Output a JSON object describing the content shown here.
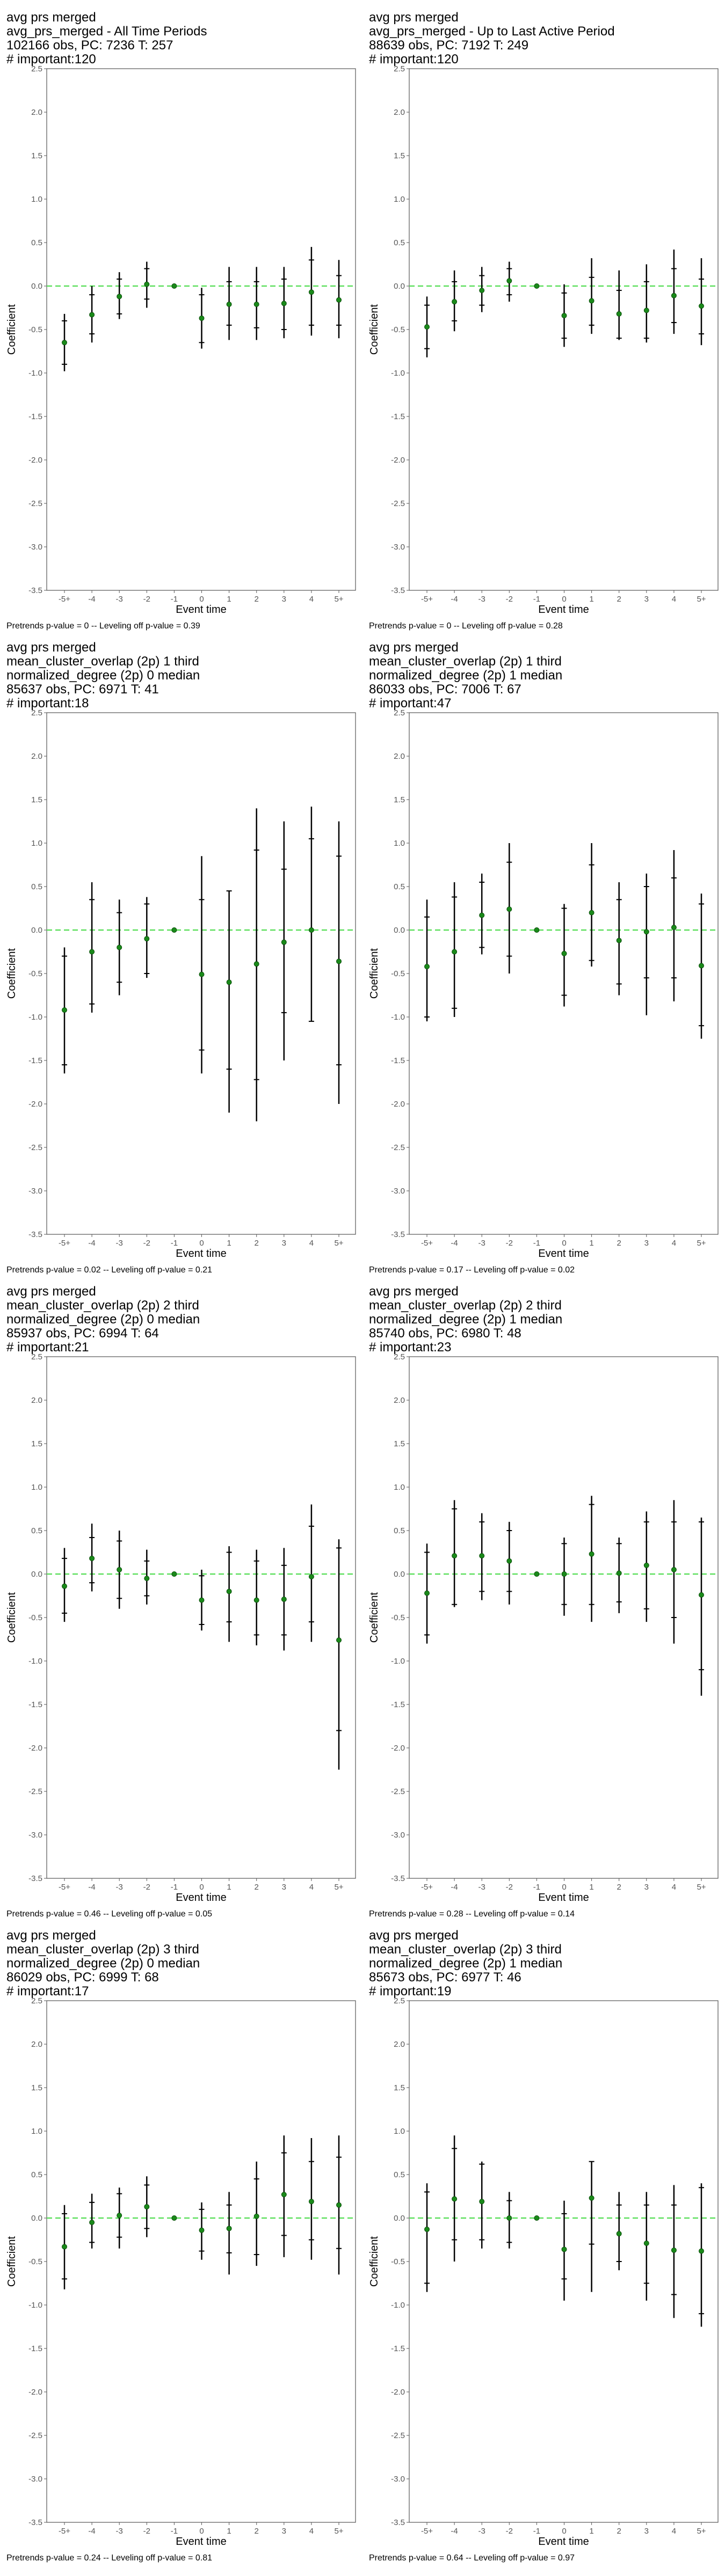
{
  "axis": {
    "ylabel": "Coefficient",
    "xlabel": "Event time",
    "categories": [
      "-5+",
      "-4",
      "-3",
      "-2",
      "-1",
      "0",
      "1",
      "2",
      "3",
      "4",
      "5+"
    ],
    "yticks": [
      "2.5",
      "2.0",
      "1.5",
      "1.0",
      "0.5",
      "0.0",
      "-0.5",
      "-1.0",
      "-1.5",
      "-2.0",
      "-2.5",
      "-3.0",
      "-3.5"
    ],
    "ylim": [
      -3.5,
      2.5
    ]
  },
  "colors": {
    "point": "#1a8a1a",
    "zero_line": "#5fe05f",
    "bar": "#000000"
  },
  "chart_data": [
    {
      "type": "scatter",
      "title": [
        "avg prs merged",
        "avg_prs_merged - All Time Periods",
        "102166 obs, PC: 7236 T: 257",
        "# important:120"
      ],
      "note": "Pretrends p-value = 0 -- Leveling off p-value = 0.39",
      "x": [
        "-5+",
        "-4",
        "-3",
        "-2",
        "-1",
        "0",
        "1",
        "2",
        "3",
        "4",
        "5+"
      ],
      "y": [
        -0.65,
        -0.33,
        -0.12,
        0.02,
        0.0,
        -0.37,
        -0.21,
        -0.21,
        -0.2,
        -0.07,
        -0.16
      ],
      "ci_inner": [
        [
          -0.9,
          -0.4
        ],
        [
          -0.55,
          -0.1
        ],
        [
          -0.32,
          0.08
        ],
        [
          -0.15,
          0.2
        ],
        [
          0,
          0
        ],
        [
          -0.65,
          -0.1
        ],
        [
          -0.45,
          0.05
        ],
        [
          -0.48,
          0.05
        ],
        [
          -0.5,
          0.08
        ],
        [
          -0.45,
          0.3
        ],
        [
          -0.45,
          0.12
        ]
      ],
      "ci_outer": [
        [
          -0.98,
          -0.32
        ],
        [
          -0.65,
          0.0
        ],
        [
          -0.38,
          0.16
        ],
        [
          -0.25,
          0.28
        ],
        [
          0,
          0
        ],
        [
          -0.72,
          -0.02
        ],
        [
          -0.62,
          0.22
        ],
        [
          -0.62,
          0.22
        ],
        [
          -0.6,
          0.22
        ],
        [
          -0.57,
          0.45
        ],
        [
          -0.6,
          0.3
        ]
      ]
    },
    {
      "type": "scatter",
      "title": [
        "avg prs merged",
        "avg_prs_merged - Up to Last Active Period",
        "88639 obs, PC: 7192 T: 249",
        "# important:120"
      ],
      "note": "Pretrends p-value = 0 -- Leveling off p-value = 0.28",
      "x": [
        "-5+",
        "-4",
        "-3",
        "-2",
        "-1",
        "0",
        "1",
        "2",
        "3",
        "4",
        "5+"
      ],
      "y": [
        -0.47,
        -0.18,
        -0.05,
        0.06,
        0.0,
        -0.34,
        -0.17,
        -0.32,
        -0.28,
        -0.11,
        -0.23
      ],
      "ci_inner": [
        [
          -0.72,
          -0.22
        ],
        [
          -0.4,
          0.05
        ],
        [
          -0.22,
          0.12
        ],
        [
          -0.1,
          0.2
        ],
        [
          0,
          0
        ],
        [
          -0.6,
          -0.08
        ],
        [
          -0.45,
          0.1
        ],
        [
          -0.6,
          -0.05
        ],
        [
          -0.6,
          0.05
        ],
        [
          -0.42,
          0.2
        ],
        [
          -0.55,
          0.08
        ]
      ],
      "ci_outer": [
        [
          -0.82,
          -0.12
        ],
        [
          -0.52,
          0.18
        ],
        [
          -0.3,
          0.22
        ],
        [
          -0.18,
          0.28
        ],
        [
          0,
          0
        ],
        [
          -0.7,
          0.02
        ],
        [
          -0.55,
          0.32
        ],
        [
          -0.62,
          0.18
        ],
        [
          -0.65,
          0.25
        ],
        [
          -0.55,
          0.42
        ],
        [
          -0.68,
          0.32
        ]
      ]
    },
    {
      "type": "scatter",
      "title": [
        "avg prs merged",
        "mean_cluster_overlap (2p) 1 third",
        "normalized_degree (2p) 0 median",
        "85637 obs, PC: 6971 T: 41",
        "# important:18"
      ],
      "note": "Pretrends p-value = 0.02 -- Leveling off p-value = 0.21",
      "x": [
        "-5+",
        "-4",
        "-3",
        "-2",
        "-1",
        "0",
        "1",
        "2",
        "3",
        "4",
        "5+"
      ],
      "y": [
        -0.92,
        -0.25,
        -0.2,
        -0.1,
        0.0,
        -0.51,
        -0.6,
        -0.39,
        -0.14,
        0.0,
        -0.36
      ],
      "ci_inner": [
        [
          -1.55,
          -0.3
        ],
        [
          -0.85,
          0.35
        ],
        [
          -0.6,
          0.2
        ],
        [
          -0.5,
          0.3
        ],
        [
          0,
          0
        ],
        [
          -1.38,
          0.35
        ],
        [
          -1.6,
          0.45
        ],
        [
          -1.72,
          0.92
        ],
        [
          -0.95,
          0.7
        ],
        [
          -1.05,
          1.05
        ],
        [
          -1.55,
          0.85
        ]
      ],
      "ci_outer": [
        [
          -1.65,
          -0.2
        ],
        [
          -0.95,
          0.55
        ],
        [
          -0.75,
          0.35
        ],
        [
          -0.55,
          0.38
        ],
        [
          0,
          0
        ],
        [
          -1.65,
          0.85
        ],
        [
          -2.1,
          0.45
        ],
        [
          -2.2,
          1.4
        ],
        [
          -1.5,
          1.25
        ],
        [
          -1.05,
          1.42
        ],
        [
          -2.0,
          1.25
        ]
      ]
    },
    {
      "type": "scatter",
      "title": [
        "avg prs merged",
        "mean_cluster_overlap (2p) 1 third",
        "normalized_degree (2p) 1 median",
        "86033 obs, PC: 7006 T: 67",
        "# important:47"
      ],
      "note": "Pretrends p-value = 0.17 -- Leveling off p-value = 0.02",
      "x": [
        "-5+",
        "-4",
        "-3",
        "-2",
        "-1",
        "0",
        "1",
        "2",
        "3",
        "4",
        "5+"
      ],
      "y": [
        -0.42,
        -0.25,
        0.17,
        0.24,
        0.0,
        -0.27,
        0.2,
        -0.12,
        -0.02,
        0.03,
        -0.41
      ],
      "ci_inner": [
        [
          -1.0,
          0.15
        ],
        [
          -0.9,
          0.38
        ],
        [
          -0.2,
          0.55
        ],
        [
          -0.3,
          0.78
        ],
        [
          0,
          0
        ],
        [
          -0.75,
          0.25
        ],
        [
          -0.35,
          0.75
        ],
        [
          -0.62,
          0.35
        ],
        [
          -0.55,
          0.5
        ],
        [
          -0.55,
          0.6
        ],
        [
          -1.1,
          0.3
        ]
      ],
      "ci_outer": [
        [
          -1.05,
          0.35
        ],
        [
          -1.0,
          0.55
        ],
        [
          -0.28,
          0.65
        ],
        [
          -0.5,
          1.0
        ],
        [
          0,
          0
        ],
        [
          -0.88,
          0.3
        ],
        [
          -0.42,
          1.0
        ],
        [
          -0.75,
          0.55
        ],
        [
          -0.98,
          0.65
        ],
        [
          -0.82,
          0.92
        ],
        [
          -1.25,
          0.42
        ]
      ]
    },
    {
      "type": "scatter",
      "title": [
        "avg prs merged",
        "mean_cluster_overlap (2p) 2 third",
        "normalized_degree (2p) 0 median",
        "85937 obs, PC: 6994 T: 64",
        "# important:21"
      ],
      "note": "Pretrends p-value = 0.46 -- Leveling off p-value = 0.05",
      "x": [
        "-5+",
        "-4",
        "-3",
        "-2",
        "-1",
        "0",
        "1",
        "2",
        "3",
        "4",
        "5+"
      ],
      "y": [
        -0.14,
        0.18,
        0.05,
        -0.05,
        0.0,
        -0.3,
        -0.2,
        -0.3,
        -0.29,
        -0.03,
        -0.76
      ],
      "ci_inner": [
        [
          -0.45,
          0.18
        ],
        [
          -0.1,
          0.42
        ],
        [
          -0.28,
          0.38
        ],
        [
          -0.25,
          0.15
        ],
        [
          0,
          0
        ],
        [
          -0.58,
          -0.02
        ],
        [
          -0.55,
          0.25
        ],
        [
          -0.7,
          0.15
        ],
        [
          -0.7,
          0.1
        ],
        [
          -0.55,
          0.55
        ],
        [
          -1.8,
          0.3
        ]
      ],
      "ci_outer": [
        [
          -0.55,
          0.3
        ],
        [
          -0.2,
          0.58
        ],
        [
          -0.4,
          0.5
        ],
        [
          -0.35,
          0.28
        ],
        [
          0,
          0
        ],
        [
          -0.65,
          0.05
        ],
        [
          -0.78,
          0.32
        ],
        [
          -0.82,
          0.28
        ],
        [
          -0.88,
          0.3
        ],
        [
          -0.78,
          0.8
        ],
        [
          -2.25,
          0.4
        ]
      ]
    },
    {
      "type": "scatter",
      "title": [
        "avg prs merged",
        "mean_cluster_overlap (2p) 2 third",
        "normalized_degree (2p) 1 median",
        "85740 obs, PC: 6980 T: 48",
        "# important:23"
      ],
      "note": "Pretrends p-value = 0.28 -- Leveling off p-value = 0.14",
      "x": [
        "-5+",
        "-4",
        "-3",
        "-2",
        "-1",
        "0",
        "1",
        "2",
        "3",
        "4",
        "5+"
      ],
      "y": [
        -0.22,
        0.21,
        0.21,
        0.15,
        0.0,
        0.0,
        0.23,
        0.01,
        0.1,
        0.05,
        -0.24
      ],
      "ci_inner": [
        [
          -0.7,
          0.25
        ],
        [
          -0.35,
          0.75
        ],
        [
          -0.2,
          0.6
        ],
        [
          -0.2,
          0.5
        ],
        [
          0,
          0
        ],
        [
          -0.35,
          0.35
        ],
        [
          -0.35,
          0.8
        ],
        [
          -0.32,
          0.35
        ],
        [
          -0.4,
          0.6
        ],
        [
          -0.5,
          0.6
        ],
        [
          -1.1,
          0.6
        ]
      ],
      "ci_outer": [
        [
          -0.8,
          0.35
        ],
        [
          -0.38,
          0.85
        ],
        [
          -0.3,
          0.7
        ],
        [
          -0.35,
          0.6
        ],
        [
          0,
          0
        ],
        [
          -0.48,
          0.42
        ],
        [
          -0.55,
          0.9
        ],
        [
          -0.45,
          0.42
        ],
        [
          -0.55,
          0.72
        ],
        [
          -0.8,
          0.85
        ],
        [
          -1.4,
          0.65
        ]
      ]
    },
    {
      "type": "scatter",
      "title": [
        "avg prs merged",
        "mean_cluster_overlap (2p) 3 third",
        "normalized_degree (2p) 0 median",
        "86029 obs, PC: 6999 T: 68",
        "# important:17"
      ],
      "note": "Pretrends p-value = 0.24 -- Leveling off p-value = 0.81",
      "x": [
        "-5+",
        "-4",
        "-3",
        "-2",
        "-1",
        "0",
        "1",
        "2",
        "3",
        "4",
        "5+"
      ],
      "y": [
        -0.33,
        -0.05,
        0.03,
        0.13,
        0.0,
        -0.14,
        -0.12,
        0.02,
        0.27,
        0.19,
        0.15
      ],
      "ci_inner": [
        [
          -0.7,
          0.05
        ],
        [
          -0.28,
          0.18
        ],
        [
          -0.22,
          0.28
        ],
        [
          -0.12,
          0.38
        ],
        [
          0,
          0
        ],
        [
          -0.38,
          0.1
        ],
        [
          -0.4,
          0.15
        ],
        [
          -0.42,
          0.45
        ],
        [
          -0.2,
          0.75
        ],
        [
          -0.25,
          0.65
        ],
        [
          -0.35,
          0.7
        ]
      ],
      "ci_outer": [
        [
          -0.82,
          0.15
        ],
        [
          -0.35,
          0.28
        ],
        [
          -0.35,
          0.35
        ],
        [
          -0.22,
          0.48
        ],
        [
          0,
          0
        ],
        [
          -0.48,
          0.18
        ],
        [
          -0.65,
          0.3
        ],
        [
          -0.55,
          0.65
        ],
        [
          -0.45,
          0.95
        ],
        [
          -0.48,
          0.92
        ],
        [
          -0.65,
          0.95
        ]
      ]
    },
    {
      "type": "scatter",
      "title": [
        "avg prs merged",
        "mean_cluster_overlap (2p) 3 third",
        "normalized_degree (2p) 1 median",
        "85673 obs, PC: 6977 T: 46",
        "# important:19"
      ],
      "note": "Pretrends p-value = 0.64 -- Leveling off p-value = 0.97",
      "x": [
        "-5+",
        "-4",
        "-3",
        "-2",
        "-1",
        "0",
        "1",
        "2",
        "3",
        "4",
        "5+"
      ],
      "y": [
        -0.13,
        0.22,
        0.19,
        0.0,
        0.0,
        -0.36,
        0.23,
        -0.18,
        -0.29,
        -0.37,
        -0.38
      ],
      "ci_inner": [
        [
          -0.75,
          0.3
        ],
        [
          -0.25,
          0.8
        ],
        [
          -0.25,
          0.62
        ],
        [
          -0.28,
          0.2
        ],
        [
          0,
          0
        ],
        [
          -0.7,
          0.05
        ],
        [
          -0.3,
          0.65
        ],
        [
          -0.5,
          0.15
        ],
        [
          -0.75,
          0.15
        ],
        [
          -0.88,
          0.15
        ],
        [
          -1.1,
          0.35
        ]
      ],
      "ci_outer": [
        [
          -0.85,
          0.4
        ],
        [
          -0.5,
          0.95
        ],
        [
          -0.35,
          0.65
        ],
        [
          -0.35,
          0.3
        ],
        [
          0,
          0
        ],
        [
          -0.95,
          0.2
        ],
        [
          -0.85,
          0.65
        ],
        [
          -0.6,
          0.3
        ],
        [
          -0.95,
          0.3
        ],
        [
          -1.15,
          0.38
        ],
        [
          -1.25,
          0.4
        ]
      ]
    }
  ]
}
